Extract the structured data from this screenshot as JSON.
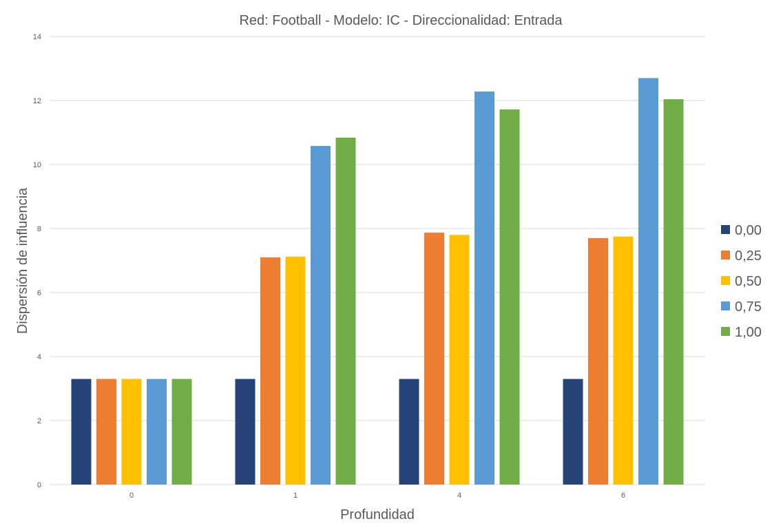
{
  "chart_data": {
    "type": "bar",
    "title": "Red: Football - Modelo: IC - Direccionalidad: Entrada",
    "xlabel": "Profundidad",
    "ylabel": "Dispersión de influencia",
    "categories": [
      "0",
      "1",
      "4",
      "6"
    ],
    "ylim": [
      0,
      14
    ],
    "yticks": [
      "0",
      "2",
      "4",
      "6",
      "8",
      "10",
      "12",
      "14"
    ],
    "grid": true,
    "legend_position": "right",
    "series": [
      {
        "name": "0,00",
        "color": "#264478",
        "values": [
          3.3,
          3.3,
          3.3,
          3.3
        ]
      },
      {
        "name": "0,25",
        "color": "#ED7D31",
        "values": [
          3.3,
          7.1,
          7.87,
          7.7
        ]
      },
      {
        "name": "0,50",
        "color": "#FFC000",
        "values": [
          3.3,
          7.12,
          7.8,
          7.75
        ]
      },
      {
        "name": "0,75",
        "color": "#5B9BD5",
        "values": [
          3.3,
          10.58,
          12.28,
          12.7
        ]
      },
      {
        "name": "1,00",
        "color": "#70AD47",
        "values": [
          3.3,
          10.84,
          11.72,
          12.04
        ]
      }
    ]
  }
}
